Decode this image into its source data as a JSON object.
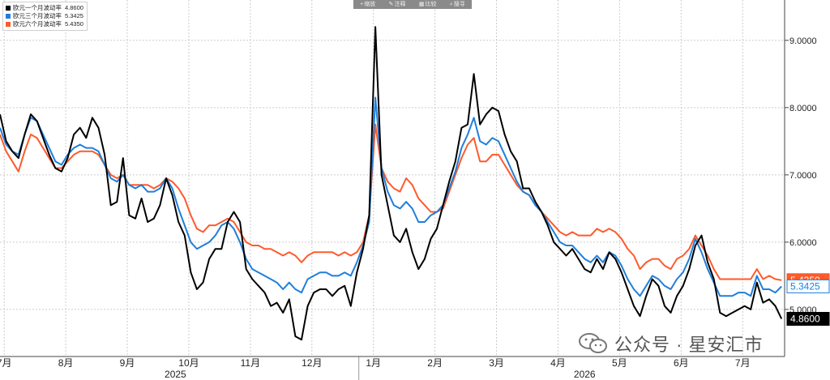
{
  "toolbar": {
    "items": [
      {
        "icon": "plus-icon",
        "label": "缩放"
      },
      {
        "icon": "pencil-icon",
        "label": "注释"
      },
      {
        "icon": "grid-icon",
        "label": "比较"
      },
      {
        "icon": "search-icon",
        "label": "搜寻"
      }
    ]
  },
  "watermark": {
    "text": "公众号 · 星安汇市"
  },
  "colors": {
    "black": "#000000",
    "blue": "#1f7fdb",
    "orange": "#ff5a2b",
    "grid": "#cccccc"
  },
  "chart_data": {
    "type": "line",
    "legend_position": "top-left",
    "grid": true,
    "x_unit": "month index (0 = start of Jul 2024)",
    "xlim": [
      0,
      12.75
    ],
    "ylim": [
      4.3,
      9.6
    ],
    "y_ticks": [
      "5.0000",
      "6.0000",
      "7.0000",
      "8.0000",
      "9.0000"
    ],
    "y_tick_values": [
      5,
      6,
      7,
      8,
      9
    ],
    "x_tick_labels": [
      {
        "label": "7月",
        "x": 0.2
      },
      {
        "label": "8月",
        "x": 1.2
      },
      {
        "label": "9月",
        "x": 2.2
      },
      {
        "label": "10月",
        "x": 3.2
      },
      {
        "label": "11月",
        "x": 4.2
      },
      {
        "label": "12月",
        "x": 5.2
      },
      {
        "label": "1月",
        "x": 6.2
      },
      {
        "label": "2月",
        "x": 7.2
      },
      {
        "label": "3月",
        "x": 8.2
      },
      {
        "label": "4月",
        "x": 9.2
      },
      {
        "label": "5月",
        "x": 10.2
      },
      {
        "label": "6月",
        "x": 11.2
      },
      {
        "label": "7月",
        "x": 12.2
      }
    ],
    "year_labels": [
      {
        "label": "2025",
        "x": 2.85
      },
      {
        "label": "2026",
        "x": 9.5
      }
    ],
    "year_dividers": [
      0.0,
      6.0
    ],
    "series": [
      {
        "name": "欧元一个月波动率",
        "last": "4.8600",
        "color": "#000000",
        "x": [
          0,
          0.1,
          0.2,
          0.3,
          0.4,
          0.5,
          0.6,
          0.7,
          0.8,
          0.9,
          1.0,
          1.1,
          1.2,
          1.3,
          1.4,
          1.5,
          1.6,
          1.7,
          1.8,
          1.9,
          2.0,
          2.1,
          2.2,
          2.3,
          2.4,
          2.5,
          2.6,
          2.7,
          2.8,
          2.9,
          3.0,
          3.1,
          3.2,
          3.3,
          3.4,
          3.5,
          3.6,
          3.7,
          3.8,
          3.9,
          4.0,
          4.1,
          4.2,
          4.3,
          4.4,
          4.5,
          4.6,
          4.7,
          4.8,
          4.9,
          5.0,
          5.1,
          5.2,
          5.3,
          5.4,
          5.5,
          5.6,
          5.7,
          5.8,
          5.9,
          6.0,
          6.1,
          6.2,
          6.3,
          6.4,
          6.5,
          6.6,
          6.7,
          6.8,
          6.9,
          7.0,
          7.1,
          7.2,
          7.3,
          7.4,
          7.5,
          7.6,
          7.7,
          7.8,
          7.9,
          8.0,
          8.1,
          8.2,
          8.3,
          8.4,
          8.5,
          8.6,
          8.7,
          8.8,
          8.9,
          9.0,
          9.1,
          9.2,
          9.3,
          9.4,
          9.5,
          9.6,
          9.7,
          9.8,
          9.9,
          10.0,
          10.1,
          10.2,
          10.3,
          10.4,
          10.5,
          10.6,
          10.7,
          10.8,
          10.9,
          11.0,
          11.1,
          11.2,
          11.3,
          11.4,
          11.5,
          11.6,
          11.7,
          11.8,
          11.9,
          12.0,
          12.1,
          12.2,
          12.3,
          12.4,
          12.5,
          12.6,
          12.7
        ],
        "values": [
          7.9,
          7.5,
          7.35,
          7.25,
          7.6,
          7.9,
          7.8,
          7.55,
          7.3,
          7.1,
          7.05,
          7.25,
          7.6,
          7.7,
          7.55,
          7.85,
          7.7,
          7.3,
          6.55,
          6.6,
          7.25,
          6.4,
          6.35,
          6.65,
          6.3,
          6.35,
          6.55,
          6.95,
          6.7,
          6.3,
          6.1,
          5.55,
          5.3,
          5.4,
          5.75,
          5.9,
          5.9,
          6.3,
          6.45,
          6.3,
          5.6,
          5.45,
          5.35,
          5.25,
          5.05,
          5.1,
          4.95,
          5.15,
          4.6,
          4.55,
          5.05,
          5.25,
          5.3,
          5.3,
          5.2,
          5.3,
          5.35,
          5.05,
          5.55,
          5.9,
          6.4,
          9.2,
          7.0,
          6.55,
          6.1,
          6.0,
          6.2,
          5.85,
          5.6,
          5.75,
          6.05,
          6.2,
          6.55,
          6.9,
          7.2,
          7.7,
          7.75,
          8.5,
          7.75,
          7.9,
          8.0,
          7.95,
          7.6,
          7.35,
          7.2,
          6.8,
          6.8,
          6.6,
          6.45,
          6.25,
          6.0,
          5.9,
          5.8,
          5.9,
          5.75,
          5.6,
          5.55,
          5.75,
          5.6,
          5.85,
          5.75,
          5.55,
          5.3,
          5.05,
          4.9,
          5.2,
          5.45,
          5.35,
          5.05,
          4.95,
          5.2,
          5.35,
          5.6,
          5.95,
          6.1,
          5.7,
          5.45,
          4.95,
          4.9,
          4.95,
          5.0,
          5.05,
          5.0,
          5.4,
          5.1,
          5.15,
          5.05,
          4.86
        ]
      },
      {
        "name": "欧元三个月波动率",
        "last": "5.3425",
        "color": "#1f7fdb",
        "x": [
          0,
          0.1,
          0.2,
          0.3,
          0.4,
          0.5,
          0.6,
          0.7,
          0.8,
          0.9,
          1.0,
          1.1,
          1.2,
          1.3,
          1.4,
          1.5,
          1.6,
          1.7,
          1.8,
          1.9,
          2.0,
          2.1,
          2.2,
          2.3,
          2.4,
          2.5,
          2.6,
          2.7,
          2.8,
          2.9,
          3.0,
          3.1,
          3.2,
          3.3,
          3.4,
          3.5,
          3.6,
          3.7,
          3.8,
          3.9,
          4.0,
          4.1,
          4.2,
          4.3,
          4.4,
          4.5,
          4.6,
          4.7,
          4.8,
          4.9,
          5.0,
          5.1,
          5.2,
          5.3,
          5.4,
          5.5,
          5.6,
          5.7,
          5.8,
          5.9,
          6.0,
          6.1,
          6.2,
          6.3,
          6.4,
          6.5,
          6.6,
          6.7,
          6.8,
          6.9,
          7.0,
          7.1,
          7.2,
          7.3,
          7.4,
          7.5,
          7.6,
          7.7,
          7.8,
          7.9,
          8.0,
          8.1,
          8.2,
          8.3,
          8.4,
          8.5,
          8.6,
          8.7,
          8.8,
          8.9,
          9.0,
          9.1,
          9.2,
          9.3,
          9.4,
          9.5,
          9.6,
          9.7,
          9.8,
          9.9,
          10.0,
          10.1,
          10.2,
          10.3,
          10.4,
          10.5,
          10.6,
          10.7,
          10.8,
          10.9,
          11.0,
          11.1,
          11.2,
          11.3,
          11.4,
          11.5,
          11.6,
          11.7,
          11.8,
          11.9,
          12.0,
          12.1,
          12.2,
          12.3,
          12.4,
          12.5,
          12.6,
          12.7
        ],
        "values": [
          7.7,
          7.45,
          7.35,
          7.3,
          7.6,
          7.85,
          7.8,
          7.6,
          7.4,
          7.2,
          7.15,
          7.3,
          7.4,
          7.45,
          7.4,
          7.4,
          7.35,
          7.15,
          6.95,
          6.9,
          7.0,
          6.85,
          6.8,
          6.85,
          6.75,
          6.75,
          6.8,
          6.95,
          6.8,
          6.5,
          6.25,
          6.0,
          5.9,
          5.95,
          6.0,
          6.1,
          6.25,
          6.3,
          6.2,
          6.0,
          5.75,
          5.6,
          5.55,
          5.5,
          5.45,
          5.4,
          5.3,
          5.4,
          5.3,
          5.25,
          5.45,
          5.5,
          5.55,
          5.55,
          5.5,
          5.5,
          5.55,
          5.5,
          5.7,
          5.95,
          6.3,
          8.15,
          7.1,
          6.75,
          6.55,
          6.5,
          6.6,
          6.5,
          6.3,
          6.3,
          6.4,
          6.45,
          6.55,
          6.8,
          7.05,
          7.4,
          7.6,
          7.85,
          7.5,
          7.45,
          7.55,
          7.5,
          7.3,
          7.1,
          6.9,
          6.75,
          6.7,
          6.55,
          6.45,
          6.3,
          6.15,
          6.0,
          5.95,
          5.95,
          5.85,
          5.75,
          5.7,
          5.8,
          5.7,
          5.85,
          5.8,
          5.65,
          5.45,
          5.3,
          5.2,
          5.35,
          5.5,
          5.45,
          5.35,
          5.3,
          5.45,
          5.55,
          5.75,
          6.05,
          5.85,
          5.6,
          5.4,
          5.2,
          5.2,
          5.2,
          5.25,
          5.25,
          5.2,
          5.5,
          5.3,
          5.3,
          5.25,
          5.3425
        ]
      },
      {
        "name": "欧元六个月波动率",
        "last": "5.4350",
        "color": "#ff5a2b",
        "x": [
          0,
          0.1,
          0.2,
          0.3,
          0.4,
          0.5,
          0.6,
          0.7,
          0.8,
          0.9,
          1.0,
          1.1,
          1.2,
          1.3,
          1.4,
          1.5,
          1.6,
          1.7,
          1.8,
          1.9,
          2.0,
          2.1,
          2.2,
          2.3,
          2.4,
          2.5,
          2.6,
          2.7,
          2.8,
          2.9,
          3.0,
          3.1,
          3.2,
          3.3,
          3.4,
          3.5,
          3.6,
          3.7,
          3.8,
          3.9,
          4.0,
          4.1,
          4.2,
          4.3,
          4.4,
          4.5,
          4.6,
          4.7,
          4.8,
          4.9,
          5.0,
          5.1,
          5.2,
          5.3,
          5.4,
          5.5,
          5.6,
          5.7,
          5.8,
          5.9,
          6.0,
          6.1,
          6.2,
          6.3,
          6.4,
          6.5,
          6.6,
          6.7,
          6.8,
          6.9,
          7.0,
          7.1,
          7.2,
          7.3,
          7.4,
          7.5,
          7.6,
          7.7,
          7.8,
          7.9,
          8.0,
          8.1,
          8.2,
          8.3,
          8.4,
          8.5,
          8.6,
          8.7,
          8.8,
          8.9,
          9.0,
          9.1,
          9.2,
          9.3,
          9.4,
          9.5,
          9.6,
          9.7,
          9.8,
          9.9,
          10.0,
          10.1,
          10.2,
          10.3,
          10.4,
          10.5,
          10.6,
          10.7,
          10.8,
          10.9,
          11.0,
          11.1,
          11.2,
          11.3,
          11.4,
          11.5,
          11.6,
          11.7,
          11.8,
          11.9,
          12.0,
          12.1,
          12.2,
          12.3,
          12.4,
          12.5,
          12.6,
          12.7
        ],
        "values": [
          7.6,
          7.35,
          7.2,
          7.05,
          7.35,
          7.6,
          7.55,
          7.4,
          7.25,
          7.1,
          7.1,
          7.2,
          7.3,
          7.35,
          7.35,
          7.35,
          7.3,
          7.15,
          7.0,
          6.95,
          7.0,
          6.85,
          6.85,
          6.85,
          6.85,
          6.8,
          6.85,
          6.95,
          6.9,
          6.8,
          6.65,
          6.4,
          6.2,
          6.15,
          6.25,
          6.25,
          6.3,
          6.35,
          6.3,
          6.15,
          6.0,
          5.95,
          5.95,
          5.9,
          5.9,
          5.85,
          5.8,
          5.85,
          5.8,
          5.7,
          5.8,
          5.85,
          5.85,
          5.85,
          5.85,
          5.8,
          5.85,
          5.8,
          5.85,
          6.0,
          6.4,
          7.75,
          7.1,
          6.9,
          6.8,
          6.75,
          6.95,
          6.85,
          6.65,
          6.55,
          6.45,
          6.45,
          6.5,
          6.75,
          7.0,
          7.25,
          7.45,
          7.55,
          7.2,
          7.2,
          7.3,
          7.3,
          7.15,
          7.0,
          6.85,
          6.75,
          6.7,
          6.55,
          6.45,
          6.35,
          6.25,
          6.15,
          6.1,
          6.15,
          6.1,
          6.1,
          6.1,
          6.2,
          6.15,
          6.2,
          6.15,
          6.05,
          5.9,
          5.8,
          5.6,
          5.7,
          5.75,
          5.75,
          5.65,
          5.6,
          5.75,
          5.8,
          5.9,
          6.1,
          5.95,
          5.8,
          5.6,
          5.45,
          5.45,
          5.45,
          5.45,
          5.45,
          5.45,
          5.6,
          5.45,
          5.5,
          5.45,
          5.435
        ]
      }
    ]
  }
}
